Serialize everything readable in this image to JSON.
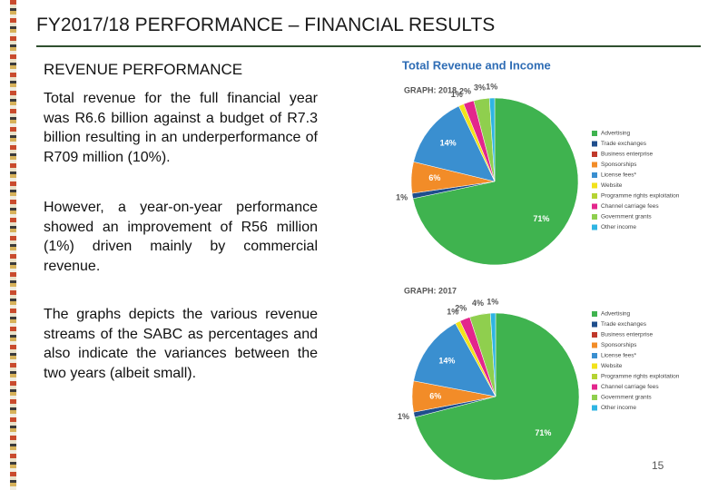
{
  "header": {
    "title": "FY2017/18 PERFORMANCE – FINANCIAL RESULTS"
  },
  "body": {
    "heading": "REVENUE PERFORMANCE",
    "paragraphs": [
      "Total revenue for the full financial year was R6.6 billion against a budget of R7.3 billion resulting in an underperformance of R709 million (10%).",
      "However, a year-on-year performance showed an improvement of R56 million (1%) driven mainly by commercial revenue.",
      "The graphs depicts the various revenue streams of the SABC as percentages and also indicate the variances between the two years (albeit small)."
    ]
  },
  "panel_title": "Total Revenue and Income",
  "page_number": "15",
  "chart_data": [
    {
      "type": "pie",
      "title": "GRAPH: 2018",
      "categories": [
        "Advertising",
        "Trade exchanges",
        "Business enterprise",
        "Sponsorships",
        "License fees*",
        "Website",
        "Programme rights exploitation",
        "Channel carriage fees",
        "Government grants",
        "Other income"
      ],
      "colors": [
        "#3fb34f",
        "#1f4e8c",
        "#c0392b",
        "#f28c28",
        "#3a8fd0",
        "#f2e21b",
        "#b5d334",
        "#e3268c",
        "#8fcf4e",
        "#2fb5e3"
      ],
      "values": [
        71,
        1,
        null,
        6,
        14,
        1,
        null,
        2,
        3,
        1
      ],
      "value_labels": [
        "71%",
        "1%",
        null,
        "6%",
        "14%",
        "1%",
        null,
        "2%",
        "3%",
        "1%"
      ],
      "legend": "right"
    },
    {
      "type": "pie",
      "title": "GRAPH: 2017",
      "categories": [
        "Advertising",
        "Trade exchanges",
        "Business enterprise",
        "Sponsorships",
        "License fees*",
        "Website",
        "Programme rights exploitation",
        "Channel carriage fees",
        "Government grants",
        "Other income"
      ],
      "colors": [
        "#3fb34f",
        "#1f4e8c",
        "#c0392b",
        "#f28c28",
        "#3a8fd0",
        "#f2e21b",
        "#b5d334",
        "#e3268c",
        "#8fcf4e",
        "#2fb5e3"
      ],
      "values": [
        71,
        1,
        null,
        6,
        14,
        1,
        null,
        2,
        4,
        1
      ],
      "value_labels": [
        "71%",
        "1%",
        null,
        "6%",
        "14%",
        "1%",
        null,
        "2%",
        "4%",
        "1%"
      ],
      "legend": "right"
    }
  ]
}
